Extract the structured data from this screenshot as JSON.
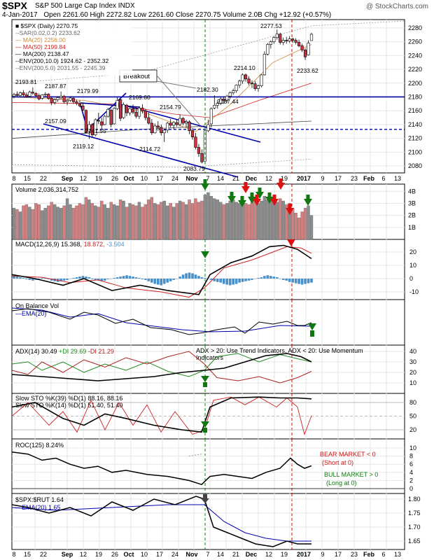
{
  "header": {
    "symbol": "$SPX",
    "name": "S&P 500 Large Cap Index",
    "exchange": "INDX",
    "watermark": "@ StockCharts.com",
    "date": "4-Jan-2017",
    "quote": "Open 2261.60  High 2272.82  Low 2261.60  Close 2270.75  Volume 2.0B  Chg +12.92 (+0.57%)"
  },
  "colors": {
    "up_candle": "#ffffff",
    "down_candle": "#cc3344",
    "volume_up": "#8c8c8c",
    "volume_down": "#d08080",
    "macd_hist": "#4a90c8",
    "signal_line": "#cc2222",
    "support_line": "#0000aa",
    "breakout_line": "#008800",
    "warning_line": "#cc0000",
    "di_plus": "#228822",
    "di_minus": "#aa2222"
  },
  "legend_lines": [
    "■ $SPX (Daily) 2270.75",
    "--SAR(0.02,0.2) 2233.62",
    "— MA(20) 2256.00",
    "— MA(50) 2199.84",
    "— MA(200) 2138.47",
    "--ENV(200,10.0) 1924.62 - 2352.32",
    "--ENV(200,5.0) 2031.55 - 2245.39"
  ],
  "price_annotations": [
    {
      "label": "2193.81",
      "value": 2193.81
    },
    {
      "label": "2187.87",
      "value": 2187.87
    },
    {
      "label": "2179.99",
      "value": 2179.99
    },
    {
      "label": "2169.60",
      "value": 2169.6
    },
    {
      "label": "2182.30",
      "value": 2182.3
    },
    {
      "label": "2214.10",
      "value": 2214.1
    },
    {
      "label": "2277.53",
      "value": 2277.53
    },
    {
      "label": "2233.62",
      "value": 2233.62
    },
    {
      "label": "2187.44",
      "value": 2187.44
    },
    {
      "label": "2157.09",
      "value": 2157.09
    },
    {
      "label": "2154.79",
      "value": 2154.79
    },
    {
      "label": "2141.55",
      "value": 2141.55
    },
    {
      "label": "2119.12",
      "value": 2119.12
    },
    {
      "label": "2114.72",
      "value": 2114.72
    },
    {
      "label": "2083.79",
      "value": 2083.79
    }
  ],
  "breakout_label": "Breakout",
  "x_axis_labels": [
    "8",
    "15",
    "22",
    "Sep",
    "12",
    "19",
    "26",
    "Oct",
    "10",
    "17",
    "24",
    "Nov",
    "7",
    "14",
    "21",
    "Dec",
    "12",
    "19",
    "2017",
    "9",
    "17",
    "23",
    "Feb",
    "6",
    "13"
  ],
  "panels": {
    "price": {
      "ticks": [
        "2280",
        "2260",
        "2240",
        "2220",
        "2200",
        "2180",
        "2160",
        "2140",
        "2120",
        "2100",
        "2080"
      ],
      "ylim": [
        2070,
        2292
      ]
    },
    "volume": {
      "title": "Volume 2,036,314,752",
      "ticks": [
        "4B",
        "3B",
        "2B",
        "1B"
      ]
    },
    "macd": {
      "title_label": "MACD(12,26,9)",
      "macd_value": "15.368",
      "signal_value": "18.872",
      "hist_value": "-3.504",
      "ticks": [
        "20",
        "10",
        "0",
        "-10"
      ]
    },
    "obv": {
      "title": "On Balance Vol",
      "ema_label": "EMA(20)"
    },
    "adx": {
      "title_prefix": "ADX(14) 30.49",
      "di_plus": "+DI 29.69",
      "di_minus": "-DI 21.29",
      "annotation": "ADX > 20: Use Trend Indicators, ADX < 20: Use Momentum Indicators",
      "ticks": [
        "40",
        "30",
        "20",
        "10"
      ]
    },
    "sto": {
      "line1_prefix": "Slow STO %K(39) %D(1) 88.16,",
      "line1_value": "88.16",
      "line2_prefix": "Slow STO %K(14) %D(1) 51.40,",
      "line2_value": "51.40",
      "ticks": [
        "80",
        "50",
        "20"
      ]
    },
    "roc": {
      "title": "ROC(125) 8.24%",
      "ticks": [
        "10",
        "8",
        "6",
        "4",
        "2",
        "0"
      ],
      "bear_note": [
        "BEAR MARKET < 0",
        "(Short at 0)"
      ],
      "bull_note": [
        "BULL MARKET > 0",
        "(Long at 0)"
      ]
    },
    "ratio": {
      "title": "$SPX:$RUT 1.64",
      "ema_label": "EMA(20) 1.65",
      "ticks": [
        "1.80",
        "1.75",
        "1.70",
        "1.65"
      ]
    }
  },
  "chart_data": {
    "type": "candlestick",
    "candles": [
      [
        2180.9,
        2186.0,
        2178.0,
        2183.5
      ],
      [
        2184.0,
        2188.0,
        2180.5,
        2182.0
      ],
      [
        2182.0,
        2187.87,
        2180.0,
        2186.0
      ],
      [
        2186.0,
        2190.0,
        2181.0,
        2183.0
      ],
      [
        2183.0,
        2186.5,
        2179.0,
        2180.5
      ],
      [
        2181.0,
        2189.0,
        2179.5,
        2187.0
      ],
      [
        2187.0,
        2193.81,
        2183.0,
        2185.5
      ],
      [
        2185.0,
        2187.0,
        2179.0,
        2182.0
      ],
      [
        2182.0,
        2185.0,
        2175.0,
        2177.0
      ],
      [
        2178.0,
        2184.0,
        2176.0,
        2183.0
      ],
      [
        2183.0,
        2187.0,
        2180.5,
        2184.0
      ],
      [
        2184.0,
        2185.5,
        2176.0,
        2178.0
      ],
      [
        2178.0,
        2181.0,
        2168.0,
        2172.0
      ],
      [
        2172.0,
        2178.0,
        2169.0,
        2176.0
      ],
      [
        2176.0,
        2181.0,
        2173.0,
        2179.0
      ],
      [
        2179.0,
        2187.87,
        2176.0,
        2181.0
      ],
      [
        2181.0,
        2183.0,
        2170.0,
        2173.0
      ],
      [
        2173.0,
        2178.0,
        2168.0,
        2175.0
      ],
      [
        2175.0,
        2181.0,
        2173.0,
        2178.5
      ],
      [
        2178.0,
        2180.0,
        2170.0,
        2173.0
      ],
      [
        2173.0,
        2176.0,
        2168.0,
        2170.5
      ],
      [
        2170.0,
        2175.0,
        2165.0,
        2167.0
      ],
      [
        2167.0,
        2172.0,
        2160.0,
        2161.0
      ],
      [
        2160.5,
        2162.0,
        2127.0,
        2128.0
      ],
      [
        2130.0,
        2145.0,
        2119.12,
        2140.0
      ],
      [
        2140.0,
        2142.0,
        2122.0,
        2125.0
      ],
      [
        2125.0,
        2149.0,
        2123.0,
        2147.0
      ],
      [
        2146.0,
        2157.09,
        2141.0,
        2145.0
      ],
      [
        2144.0,
        2150.0,
        2134.0,
        2139.0
      ],
      [
        2140.0,
        2154.0,
        2139.0,
        2152.0
      ],
      [
        2152.0,
        2164.0,
        2150.0,
        2162.0
      ],
      [
        2161.0,
        2163.0,
        2136.0,
        2140.0
      ],
      [
        2141.0,
        2165.0,
        2140.0,
        2163.5
      ],
      [
        2163.0,
        2179.99,
        2161.0,
        2175.0
      ],
      [
        2176.0,
        2177.0,
        2145.0,
        2149.0
      ],
      [
        2150.0,
        2172.0,
        2148.0,
        2169.0
      ],
      [
        2168.0,
        2170.0,
        2152.0,
        2157.0
      ],
      [
        2157.0,
        2167.0,
        2153.0,
        2163.0
      ],
      [
        2163.0,
        2169.0,
        2155.0,
        2158.0
      ],
      [
        2158.0,
        2166.0,
        2149.0,
        2152.0
      ],
      [
        2152.0,
        2166.0,
        2148.0,
        2164.0
      ],
      [
        2164.0,
        2169.6,
        2156.0,
        2160.0
      ],
      [
        2160.0,
        2163.0,
        2146.0,
        2150.0
      ],
      [
        2150.0,
        2157.0,
        2140.0,
        2142.0
      ],
      [
        2142.0,
        2148.0,
        2125.0,
        2128.0
      ],
      [
        2128.0,
        2141.55,
        2127.0,
        2138.0
      ],
      [
        2138.0,
        2145.0,
        2131.0,
        2136.0
      ],
      [
        2136.0,
        2140.0,
        2124.0,
        2128.0
      ],
      [
        2128.0,
        2133.0,
        2114.72,
        2132.0
      ],
      [
        2132.0,
        2144.0,
        2128.0,
        2142.0
      ],
      [
        2142.0,
        2148.0,
        2136.0,
        2139.0
      ],
      [
        2139.0,
        2145.0,
        2133.0,
        2143.0
      ],
      [
        2143.0,
        2148.0,
        2137.0,
        2140.0
      ],
      [
        2140.0,
        2154.79,
        2138.0,
        2149.0
      ],
      [
        2149.0,
        2151.0,
        2139.0,
        2142.0
      ],
      [
        2142.0,
        2147.0,
        2136.0,
        2144.0
      ],
      [
        2144.0,
        2146.0,
        2126.0,
        2131.0
      ],
      [
        2131.0,
        2135.0,
        2118.0,
        2122.0
      ],
      [
        2122.0,
        2128.0,
        2104.0,
        2107.0
      ],
      [
        2107.0,
        2112.0,
        2093.0,
        2098.0
      ],
      [
        2098.0,
        2104.0,
        2083.79,
        2086.0
      ],
      [
        2087.0,
        2134.0,
        2087.0,
        2131.0
      ],
      [
        2131.0,
        2147.0,
        2129.0,
        2140.0
      ],
      [
        2141.0,
        2165.0,
        2136.0,
        2163.0
      ],
      [
        2164.0,
        2182.3,
        2162.0,
        2168.0
      ],
      [
        2168.0,
        2175.0,
        2163.0,
        2171.0
      ],
      [
        2171.0,
        2180.0,
        2168.0,
        2177.0
      ],
      [
        2177.0,
        2181.0,
        2170.0,
        2175.0
      ],
      [
        2175.0,
        2183.0,
        2172.0,
        2181.0
      ],
      [
        2181.0,
        2188.0,
        2177.0,
        2186.0
      ],
      [
        2186.0,
        2192.0,
        2183.0,
        2189.0
      ],
      [
        2189.0,
        2198.0,
        2186.0,
        2197.0
      ],
      [
        2197.0,
        2205.0,
        2193.0,
        2203.0
      ],
      [
        2203.0,
        2214.1,
        2199.0,
        2212.0
      ],
      [
        2212.0,
        2214.0,
        2202.0,
        2206.0
      ],
      [
        2206.0,
        2210.0,
        2197.0,
        2200.0
      ],
      [
        2200.0,
        2204.0,
        2193.0,
        2199.0
      ],
      [
        2199.0,
        2203.0,
        2189.0,
        2192.0
      ],
      [
        2192.0,
        2198.0,
        2187.44,
        2196.0
      ],
      [
        2196.0,
        2213.0,
        2194.0,
        2212.0
      ],
      [
        2212.0,
        2246.0,
        2211.0,
        2242.0
      ],
      [
        2242.0,
        2258.0,
        2240.0,
        2256.0
      ],
      [
        2256.0,
        2262.0,
        2250.0,
        2260.0
      ],
      [
        2260.0,
        2268.0,
        2257.0,
        2266.0
      ],
      [
        2266.0,
        2277.53,
        2263.0,
        2271.0
      ],
      [
        2271.0,
        2273.0,
        2256.0,
        2259.0
      ],
      [
        2259.0,
        2266.0,
        2255.0,
        2262.0
      ],
      [
        2262.0,
        2267.0,
        2257.0,
        2261.0
      ],
      [
        2261.0,
        2268.0,
        2258.0,
        2264.0
      ],
      [
        2264.0,
        2266.0,
        2258.0,
        2262.0
      ],
      [
        2262.0,
        2265.0,
        2256.0,
        2259.0
      ],
      [
        2259.0,
        2263.0,
        2252.0,
        2254.0
      ],
      [
        2254.0,
        2257.0,
        2245.0,
        2248.0
      ],
      [
        2248.0,
        2250.0,
        2233.62,
        2238.0
      ],
      [
        2241.0,
        2262.0,
        2240.0,
        2258.0
      ],
      [
        2261.6,
        2272.82,
        2261.6,
        2270.75
      ]
    ],
    "volume_values": [
      2.6,
      2.5,
      2.3,
      2.8,
      2.9,
      2.7,
      2.5,
      3.0,
      2.9,
      2.4,
      2.6,
      2.8,
      3.1,
      2.9,
      2.7,
      2.6,
      2.8,
      3.4,
      2.9,
      2.6,
      2.8,
      3.0,
      2.9,
      3.5,
      3.3,
      3.0,
      2.8,
      2.7,
      3.2,
      2.9,
      2.6,
      3.1,
      2.9,
      2.8,
      3.3,
      3.2,
      2.7,
      3.0,
      2.9,
      2.8,
      3.1,
      2.7,
      2.9,
      3.3,
      3.5,
      3.0,
      2.9,
      3.1,
      3.2,
      2.8,
      3.0,
      2.7,
      3.0,
      3.2,
      3.1,
      2.9,
      3.3,
      3.0,
      3.4,
      3.1,
      3.2,
      3.7,
      3.9,
      3.6,
      3.4,
      3.3,
      3.1,
      2.9,
      3.0,
      3.2,
      3.3,
      3.1,
      3.0,
      3.2,
      3.0,
      2.9,
      3.1,
      3.4,
      3.0,
      3.2,
      3.6,
      3.3,
      3.5,
      3.0,
      3.1,
      3.4,
      3.2,
      2.9,
      3.0,
      2.6,
      2.2,
      1.8,
      2.3,
      2.6,
      2.8,
      2.0
    ]
  }
}
